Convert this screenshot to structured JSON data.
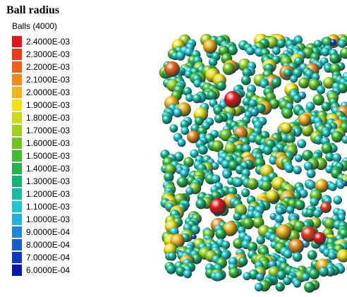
{
  "title": "Ball radius",
  "subtitle": "Balls (4000)",
  "legend": {
    "items": [
      {
        "label": "2.4000E-03",
        "color": "#e8141c"
      },
      {
        "label": "2.3000E-03",
        "color": "#ec3a16"
      },
      {
        "label": "2.2000E-03",
        "color": "#f06218"
      },
      {
        "label": "2.1000E-03",
        "color": "#f28a1c"
      },
      {
        "label": "2.0000E-03",
        "color": "#f6b214"
      },
      {
        "label": "1.9000E-03",
        "color": "#f2e014"
      },
      {
        "label": "1.8000E-03",
        "color": "#c8dc18"
      },
      {
        "label": "1.7000E-03",
        "color": "#9ad21c"
      },
      {
        "label": "1.6000E-03",
        "color": "#6cc61e"
      },
      {
        "label": "1.5000E-03",
        "color": "#40bc2a"
      },
      {
        "label": "1.4000E-03",
        "color": "#22b44c"
      },
      {
        "label": "1.3000E-03",
        "color": "#14b474"
      },
      {
        "label": "1.2000E-03",
        "color": "#14bea0"
      },
      {
        "label": "1.1000E-03",
        "color": "#1ecad2"
      },
      {
        "label": "1.0000E-03",
        "color": "#24b0e6"
      },
      {
        "label": "9.0000E-04",
        "color": "#1c88dc"
      },
      {
        "label": "8.0000E-04",
        "color": "#1460d0"
      },
      {
        "label": "7.0000E-04",
        "color": "#0c38c4"
      },
      {
        "label": "6.0000E-04",
        "color": "#0814b8"
      }
    ]
  }
}
